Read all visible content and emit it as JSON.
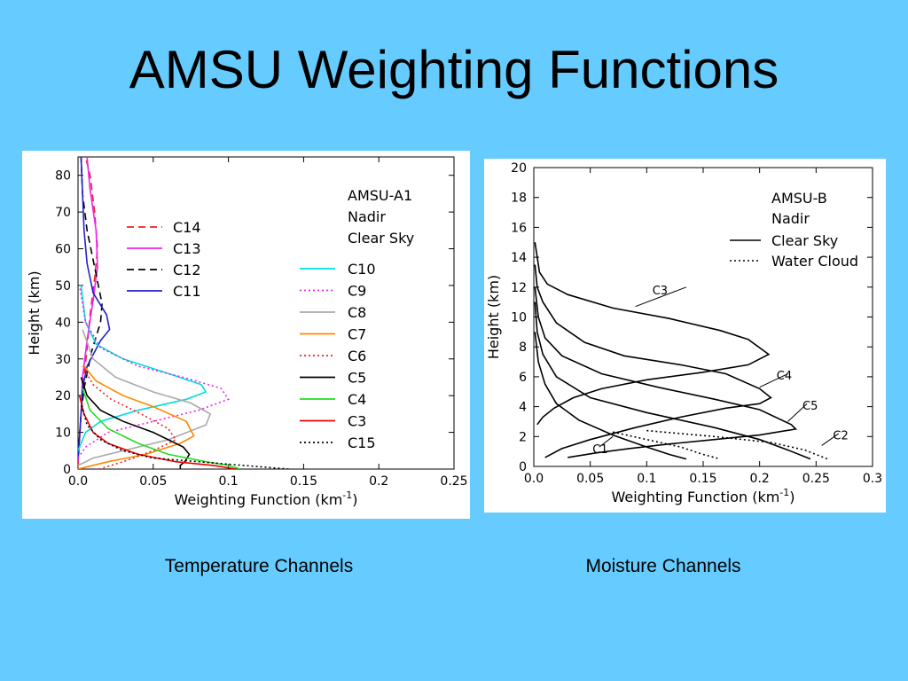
{
  "slide": {
    "title": "AMSU Weighting Functions",
    "caption_left": "Temperature Channels",
    "caption_right": "Moisture Channels"
  },
  "chart_data": [
    {
      "type": "line",
      "xlabel": "Weighting Function (km",
      "xlabel_sup": "-1",
      "xlabel_end": ")",
      "ylabel": "Height (km)",
      "xlim": [
        0,
        0.25
      ],
      "ylim": [
        0,
        85
      ],
      "xticks": [
        0.0,
        0.05,
        0.1,
        0.15,
        0.2,
        0.25
      ],
      "xtick_labels": [
        "0.0",
        "0.05",
        "0.1",
        "0.15",
        "0.2",
        "0.25"
      ],
      "yticks": [
        0,
        10,
        20,
        30,
        40,
        50,
        60,
        70,
        80
      ],
      "ytick_labels": [
        "0",
        "10",
        "20",
        "30",
        "40",
        "50",
        "60",
        "70",
        "80"
      ],
      "annotation": [
        "AMSU-A1",
        "Nadir",
        "Clear Sky"
      ],
      "legend_groups": [
        [
          "C14",
          "C13",
          "C12",
          "C11"
        ],
        [
          "C10",
          "C9",
          "C8",
          "C7",
          "C6",
          "C5",
          "C4",
          "C3",
          "C15"
        ]
      ],
      "series": [
        {
          "name": "C14",
          "color": "#ee2222",
          "dash": "dashed",
          "points": [
            [
              0,
              1
            ],
            [
              0.002,
              15
            ],
            [
              0.004,
              25
            ],
            [
              0.006,
              33
            ],
            [
              0.008,
              42
            ],
            [
              0.011,
              52
            ],
            [
              0.013,
              60
            ],
            [
              0.011,
              70
            ],
            [
              0.008,
              80
            ],
            [
              0.005,
              85
            ]
          ]
        },
        {
          "name": "C13",
          "color": "#ee22ee",
          "dash": "solid",
          "points": [
            [
              0,
              2
            ],
            [
              0.002,
              15
            ],
            [
              0.003,
              25
            ],
            [
              0.006,
              35
            ],
            [
              0.01,
              46
            ],
            [
              0.013,
              55
            ],
            [
              0.012,
              65
            ],
            [
              0.008,
              76
            ],
            [
              0.006,
              85
            ]
          ]
        },
        {
          "name": "C12",
          "color": "#000000",
          "dash": "dashed",
          "points": [
            [
              0,
              3
            ],
            [
              0.002,
              15
            ],
            [
              0.004,
              22
            ],
            [
              0.009,
              32
            ],
            [
              0.015,
              40
            ],
            [
              0.016,
              45
            ],
            [
              0.011,
              55
            ],
            [
              0.006,
              65
            ],
            [
              0.003,
              75
            ],
            [
              0.002,
              85
            ]
          ]
        },
        {
          "name": "C11",
          "color": "#2222cc",
          "dash": "solid",
          "points": [
            [
              0,
              3
            ],
            [
              0.002,
              15
            ],
            [
              0.003,
              22
            ],
            [
              0.006,
              28
            ],
            [
              0.015,
              35
            ],
            [
              0.021,
              38
            ],
            [
              0.019,
              42
            ],
            [
              0.01,
              48
            ],
            [
              0.006,
              56
            ],
            [
              0.004,
              65
            ],
            [
              0.003,
              75
            ],
            [
              0.002,
              85
            ]
          ]
        },
        {
          "name": "C10",
          "color": "#00dddd",
          "dash": "solid",
          "points": [
            [
              0,
              5
            ],
            [
              0.005,
              10
            ],
            [
              0.015,
              13
            ],
            [
              0.04,
              16
            ],
            [
              0.072,
              19
            ],
            [
              0.085,
              21
            ],
            [
              0.082,
              23
            ],
            [
              0.06,
              26
            ],
            [
              0.03,
              30
            ],
            [
              0.012,
              34
            ],
            [
              0.005,
              40
            ],
            [
              0.002,
              50
            ]
          ]
        },
        {
          "name": "C9",
          "color": "#ee22ee",
          "dash": "dotted",
          "points": [
            [
              0,
              3
            ],
            [
              0.005,
              6
            ],
            [
              0.02,
              10
            ],
            [
              0.05,
              13
            ],
            [
              0.08,
              16
            ],
            [
              0.1,
              19
            ],
            [
              0.095,
              22
            ],
            [
              0.07,
              25
            ],
            [
              0.04,
              28
            ],
            [
              0.015,
              33
            ],
            [
              0.005,
              40
            ],
            [
              0.001,
              50
            ]
          ]
        },
        {
          "name": "C8",
          "color": "#aaaaaa",
          "dash": "solid",
          "points": [
            [
              0,
              1
            ],
            [
              0.01,
              3
            ],
            [
              0.03,
              5
            ],
            [
              0.06,
              8
            ],
            [
              0.085,
              12
            ],
            [
              0.088,
              15
            ],
            [
              0.075,
              18
            ],
            [
              0.05,
              21
            ],
            [
              0.025,
              25
            ],
            [
              0.01,
              30
            ],
            [
              0.003,
              38
            ]
          ]
        },
        {
          "name": "C7",
          "color": "#ff8800",
          "dash": "solid",
          "points": [
            [
              0,
              0
            ],
            [
              0.02,
              2
            ],
            [
              0.045,
              4
            ],
            [
              0.068,
              7
            ],
            [
              0.077,
              9
            ],
            [
              0.072,
              13
            ],
            [
              0.05,
              17
            ],
            [
              0.03,
              20
            ],
            [
              0.012,
              24
            ],
            [
              0.004,
              28
            ]
          ]
        },
        {
          "name": "C6",
          "color": "#ee2222",
          "dash": "dotted",
          "points": [
            [
              0.014,
              0
            ],
            [
              0.03,
              2
            ],
            [
              0.05,
              5
            ],
            [
              0.065,
              8
            ],
            [
              0.06,
              11
            ],
            [
              0.042,
              15
            ],
            [
              0.022,
              19
            ],
            [
              0.01,
              23
            ],
            [
              0.003,
              28
            ]
          ]
        },
        {
          "name": "C5",
          "color": "#000000",
          "dash": "solid",
          "points": [
            [
              0.068,
              0
            ],
            [
              0.068,
              1
            ],
            [
              0.071,
              2
            ],
            [
              0.074,
              4
            ],
            [
              0.07,
              6
            ],
            [
              0.05,
              10
            ],
            [
              0.03,
              13
            ],
            [
              0.015,
              16
            ],
            [
              0.006,
              20
            ],
            [
              0.002,
              25
            ]
          ]
        },
        {
          "name": "C4",
          "color": "#22dd22",
          "dash": "solid",
          "points": [
            [
              0.108,
              0
            ],
            [
              0.1,
              1
            ],
            [
              0.085,
              2
            ],
            [
              0.06,
              4
            ],
            [
              0.04,
              7
            ],
            [
              0.02,
              11
            ],
            [
              0.008,
              16
            ],
            [
              0.003,
              22
            ]
          ]
        },
        {
          "name": "C3",
          "color": "#ee0000",
          "dash": "solid",
          "points": [
            [
              0.105,
              0
            ],
            [
              0.09,
              1
            ],
            [
              0.065,
              2
            ],
            [
              0.04,
              4
            ],
            [
              0.02,
              7
            ],
            [
              0.01,
              10
            ],
            [
              0.004,
              15
            ],
            [
              0.001,
              20
            ]
          ]
        },
        {
          "name": "C15",
          "color": "#000000",
          "dash": "dotted",
          "points": [
            [
              0.14,
              0
            ],
            [
              0.11,
              1
            ],
            [
              0.08,
              2
            ],
            [
              0.05,
              3
            ],
            [
              0.03,
              5
            ],
            [
              0.015,
              8
            ],
            [
              0.006,
              12
            ],
            [
              0.002,
              18
            ]
          ]
        }
      ]
    },
    {
      "type": "line",
      "xlabel": "Weighting Function (km",
      "xlabel_sup": "-1",
      "xlabel_end": ")",
      "ylabel": "Height (km)",
      "xlim": [
        0,
        0.3
      ],
      "ylim": [
        0,
        20
      ],
      "xticks": [
        0.0,
        0.05,
        0.1,
        0.15,
        0.2,
        0.25,
        0.3
      ],
      "xtick_labels": [
        "0.0",
        "0.05",
        "0.1",
        "0.15",
        "0.2",
        "0.25",
        "0.3"
      ],
      "yticks": [
        0,
        2,
        4,
        6,
        8,
        10,
        12,
        14,
        16,
        18,
        20
      ],
      "ytick_labels": [
        "0",
        "2",
        "4",
        "6",
        "8",
        "10",
        "12",
        "14",
        "16",
        "18",
        "20"
      ],
      "annotation": [
        "AMSU-B",
        "Nadir"
      ],
      "legend": [
        {
          "label": "Clear Sky",
          "dash": "solid"
        },
        {
          "label": "Water Cloud",
          "dash": "dotted"
        }
      ],
      "curve_labels": [
        "C3",
        "C4",
        "C5",
        "C2",
        "C1"
      ],
      "series": [
        {
          "name": "C3",
          "dash": "solid",
          "points": [
            [
              0.001,
              15
            ],
            [
              0.005,
              13
            ],
            [
              0.012,
              12.2
            ],
            [
              0.03,
              11.5
            ],
            [
              0.07,
              10.6
            ],
            [
              0.12,
              9.9
            ],
            [
              0.165,
              9.1
            ],
            [
              0.19,
              8.5
            ],
            [
              0.208,
              7.5
            ],
            [
              0.19,
              6.8
            ],
            [
              0.15,
              6.3
            ],
            [
              0.1,
              5.8
            ],
            [
              0.06,
              5.2
            ],
            [
              0.035,
              4.6
            ],
            [
              0.018,
              3.9
            ],
            [
              0.008,
              3.3
            ],
            [
              0.003,
              2.8
            ]
          ]
        },
        {
          "name": "C4",
          "dash": "solid",
          "points": [
            [
              0.001,
              13.5
            ],
            [
              0.003,
              12
            ],
            [
              0.008,
              11
            ],
            [
              0.02,
              9.6
            ],
            [
              0.045,
              8.3
            ],
            [
              0.08,
              7.4
            ],
            [
              0.13,
              6.8
            ],
            [
              0.17,
              6.2
            ],
            [
              0.2,
              5.2
            ],
            [
              0.21,
              4.6
            ],
            [
              0.2,
              4.2
            ],
            [
              0.17,
              3.9
            ],
            [
              0.13,
              3.3
            ],
            [
              0.09,
              2.6
            ],
            [
              0.05,
              1.8
            ],
            [
              0.025,
              1.2
            ],
            [
              0.01,
              0.6
            ]
          ]
        },
        {
          "name": "C5",
          "dash": "solid",
          "points": [
            [
              0.001,
              12
            ],
            [
              0.004,
              10
            ],
            [
              0.01,
              8.6
            ],
            [
              0.025,
              7.4
            ],
            [
              0.06,
              6.2
            ],
            [
              0.11,
              5.3
            ],
            [
              0.16,
              4.5
            ],
            [
              0.2,
              3.8
            ],
            [
              0.228,
              2.8
            ],
            [
              0.232,
              2.5
            ],
            [
              0.2,
              2.1
            ],
            [
              0.16,
              1.8
            ],
            [
              0.12,
              1.5
            ],
            [
              0.085,
              1.2
            ],
            [
              0.055,
              0.9
            ],
            [
              0.03,
              0.6
            ]
          ]
        },
        {
          "name": "C2",
          "dash": "solid",
          "points": [
            [
              0.001,
              11
            ],
            [
              0.003,
              9
            ],
            [
              0.008,
              7.5
            ],
            [
              0.02,
              6
            ],
            [
              0.05,
              4.6
            ],
            [
              0.1,
              3.6
            ],
            [
              0.16,
              2.6
            ],
            [
              0.2,
              1.8
            ],
            [
              0.225,
              1.1
            ],
            [
              0.245,
              0.5
            ]
          ]
        },
        {
          "name": "C1",
          "dash": "solid",
          "points": [
            [
              0.001,
              9
            ],
            [
              0.004,
              7
            ],
            [
              0.01,
              5.5
            ],
            [
              0.02,
              4.2
            ],
            [
              0.04,
              3.1
            ],
            [
              0.07,
              2.1
            ],
            [
              0.1,
              1.3
            ],
            [
              0.12,
              0.8
            ],
            [
              0.135,
              0.5
            ]
          ]
        },
        {
          "name": "C2 cloud",
          "dash": "dotted",
          "points": [
            [
              0.1,
              2.4
            ],
            [
              0.16,
              2.0
            ],
            [
              0.21,
              1.6
            ],
            [
              0.24,
              1.1
            ],
            [
              0.26,
              0.5
            ]
          ]
        },
        {
          "name": "C1 cloud",
          "dash": "dotted",
          "points": [
            [
              0.07,
              2.3
            ],
            [
              0.1,
              1.8
            ],
            [
              0.13,
              1.3
            ],
            [
              0.15,
              0.8
            ],
            [
              0.165,
              0.5
            ]
          ]
        }
      ]
    }
  ]
}
